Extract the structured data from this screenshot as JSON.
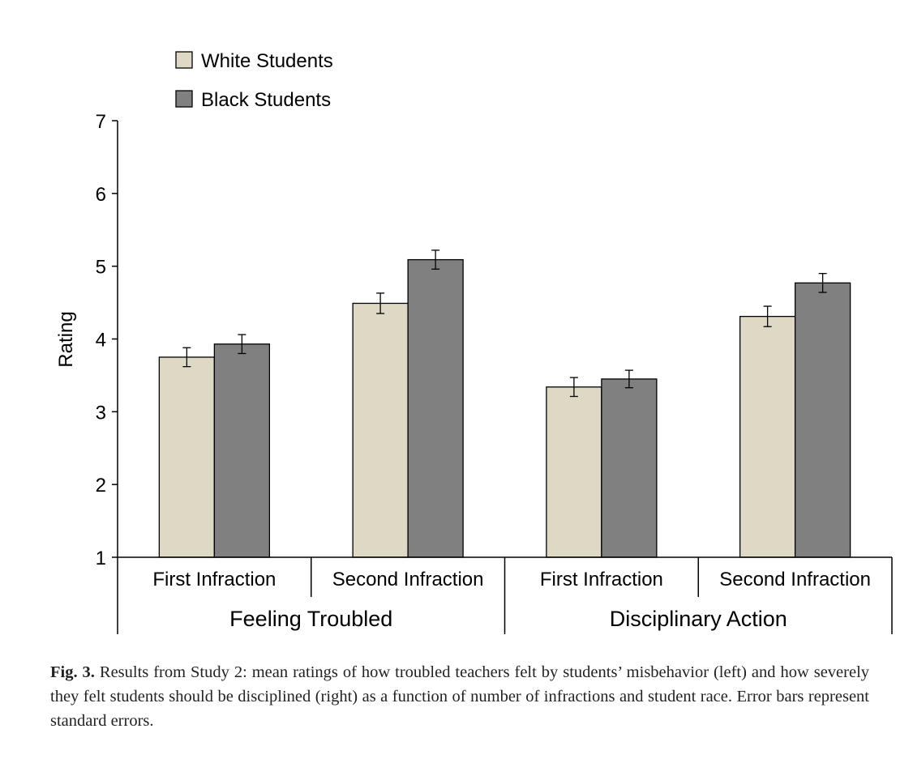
{
  "chart_data": {
    "type": "bar",
    "ylabel": "Rating",
    "ylim": [
      1,
      7
    ],
    "yticks": [
      1,
      2,
      3,
      4,
      5,
      6,
      7
    ],
    "grid": false,
    "legend_position": "top-left",
    "groups": [
      {
        "label": "Feeling Troubled",
        "categories": [
          "First Infraction",
          "Second Infraction"
        ]
      },
      {
        "label": "Disciplinary Action",
        "categories": [
          "First Infraction",
          "Second Infraction"
        ]
      }
    ],
    "categories": [
      "First Infraction",
      "Second Infraction",
      "First Infraction",
      "Second Infraction"
    ],
    "series": [
      {
        "name": "White Students",
        "color": "#ddd9c4",
        "values": [
          3.75,
          4.49,
          3.34,
          4.31
        ],
        "errors": [
          0.13,
          0.14,
          0.13,
          0.14
        ]
      },
      {
        "name": "Black Students",
        "color": "#808080",
        "values": [
          3.93,
          5.09,
          3.45,
          4.77
        ],
        "errors": [
          0.13,
          0.13,
          0.12,
          0.13
        ]
      }
    ]
  },
  "caption": {
    "label": "Fig. 3.",
    "text": "Results from Study 2: mean ratings of how troubled teachers felt by students’ misbehavior (left) and how severely they felt students should be disciplined (right) as a function of number of infractions and student race. Error bars represent standard errors."
  }
}
